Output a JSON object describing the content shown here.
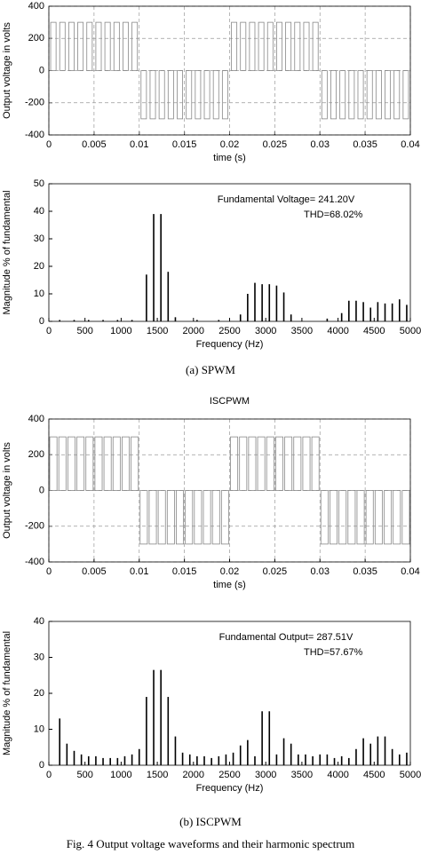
{
  "chart_data": [
    {
      "type": "pulse",
      "xlabel": "time (s)",
      "ylabel": "Output voltage in volts",
      "xlim": [
        0,
        0.04
      ],
      "xticks": [
        0,
        0.005,
        0.01,
        0.015,
        0.02,
        0.025,
        0.03,
        0.035,
        0.04
      ],
      "ylim": [
        -400,
        400
      ],
      "yticks": [
        -400,
        -200,
        0,
        200,
        400
      ],
      "grid": true,
      "color": "#888888",
      "x_start": [
        0.0002,
        0.0012,
        0.0022,
        0.0032,
        0.0042,
        0.0052,
        0.0062,
        0.0072,
        0.0082,
        0.0092,
        0.0102,
        0.0112,
        0.0122,
        0.0132,
        0.0142,
        0.0152,
        0.0162,
        0.0172,
        0.0182,
        0.0192,
        0.0202,
        0.0212,
        0.0222,
        0.0232,
        0.0242,
        0.0252,
        0.0262,
        0.0272,
        0.0282,
        0.0292,
        0.0302,
        0.0312,
        0.0322,
        0.0332,
        0.0342,
        0.0352,
        0.0362,
        0.0372,
        0.0382,
        0.0392
      ],
      "x_end": [
        0.0008,
        0.0018,
        0.0028,
        0.0038,
        0.0048,
        0.0058,
        0.0068,
        0.0078,
        0.0088,
        0.0098,
        0.0108,
        0.0118,
        0.0128,
        0.0138,
        0.0148,
        0.0158,
        0.0168,
        0.0178,
        0.0188,
        0.0198,
        0.0208,
        0.0218,
        0.0228,
        0.0238,
        0.0248,
        0.0258,
        0.0268,
        0.0278,
        0.0288,
        0.0298,
        0.0308,
        0.0318,
        0.0328,
        0.0338,
        0.0348,
        0.0358,
        0.0368,
        0.0378,
        0.0388,
        0.0398
      ],
      "values": [
        300,
        300,
        300,
        300,
        300,
        300,
        300,
        300,
        300,
        300,
        -300,
        -300,
        -300,
        -300,
        -300,
        -300,
        -300,
        -300,
        -300,
        -300,
        300,
        300,
        300,
        300,
        300,
        300,
        300,
        300,
        300,
        300,
        -300,
        -300,
        -300,
        -300,
        -300,
        -300,
        -300,
        -300,
        -300,
        -300
      ]
    },
    {
      "type": "bar",
      "xlabel": "Frequency (Hz)",
      "ylabel": "Magnitude % of fundamental",
      "annotations": [
        "Fundamental Voltage= 241.20V",
        "THD=68.02%"
      ],
      "xlim": [
        0,
        5000
      ],
      "xticks": [
        0,
        500,
        1000,
        1500,
        2000,
        2500,
        3000,
        3500,
        4000,
        4500,
        5000
      ],
      "ylim": [
        0,
        50
      ],
      "yticks": [
        0,
        10,
        20,
        30,
        40,
        50
      ],
      "grid": false,
      "color": "#000000",
      "x": [
        150,
        350,
        550,
        750,
        950,
        1150,
        1350,
        1450,
        1550,
        1650,
        1750,
        2050,
        2350,
        2650,
        2750,
        2850,
        2950,
        3050,
        3150,
        3250,
        3350,
        3850,
        4050,
        4150,
        4250,
        4350,
        4450,
        4550,
        4650,
        4750,
        4850,
        4950
      ],
      "values": [
        0.5,
        0.5,
        0.5,
        0.5,
        0.5,
        0.5,
        17,
        39,
        39,
        18,
        1.5,
        0.5,
        0.5,
        2.5,
        10,
        14,
        13.5,
        13.5,
        13,
        10.5,
        2.5,
        1,
        3,
        7.5,
        7.5,
        7,
        5,
        7,
        6.5,
        6.5,
        8,
        6
      ]
    },
    {
      "type": "pulse",
      "title": "ISCPWM",
      "xlabel": "time (s)",
      "ylabel": "Output voltage in volts",
      "xlim": [
        0,
        0.04
      ],
      "xticks": [
        0,
        0.005,
        0.01,
        0.015,
        0.02,
        0.025,
        0.03,
        0.035,
        0.04
      ],
      "ylim": [
        -400,
        400
      ],
      "yticks": [
        -400,
        -200,
        0,
        200,
        400
      ],
      "grid": true,
      "color": "#888888",
      "x_start": [
        0.0001,
        0.0011,
        0.0021,
        0.0031,
        0.0041,
        0.0051,
        0.0061,
        0.0071,
        0.0081,
        0.0091,
        0.0101,
        0.0111,
        0.0121,
        0.0131,
        0.0141,
        0.0151,
        0.0161,
        0.0171,
        0.0181,
        0.0191,
        0.0201,
        0.0211,
        0.0221,
        0.0231,
        0.0241,
        0.0251,
        0.0261,
        0.0271,
        0.0281,
        0.0291,
        0.0301,
        0.0311,
        0.0321,
        0.0331,
        0.0341,
        0.0351,
        0.0361,
        0.0371,
        0.0381,
        0.0391
      ],
      "x_end": [
        0.0009,
        0.0019,
        0.0029,
        0.0039,
        0.0049,
        0.0059,
        0.0069,
        0.0079,
        0.0089,
        0.0099,
        0.0109,
        0.0119,
        0.0129,
        0.0139,
        0.0149,
        0.0159,
        0.0169,
        0.0179,
        0.0189,
        0.0199,
        0.0209,
        0.0219,
        0.0229,
        0.0239,
        0.0249,
        0.0259,
        0.0269,
        0.0279,
        0.0289,
        0.0299,
        0.0309,
        0.0319,
        0.0329,
        0.0339,
        0.0349,
        0.0359,
        0.0369,
        0.0379,
        0.0389,
        0.0399
      ],
      "values": [
        300,
        300,
        300,
        300,
        300,
        300,
        300,
        300,
        300,
        300,
        -300,
        -300,
        -300,
        -300,
        -300,
        -300,
        -300,
        -300,
        -300,
        -300,
        300,
        300,
        300,
        300,
        300,
        300,
        300,
        300,
        300,
        300,
        -300,
        -300,
        -300,
        -300,
        -300,
        -300,
        -300,
        -300,
        -300,
        -300
      ]
    },
    {
      "type": "bar",
      "xlabel": "Frequency (Hz)",
      "ylabel": "Magnitude % of fundamental",
      "annotations": [
        "Fundamental Output= 287.51V",
        "THD=57.67%"
      ],
      "xlim": [
        0,
        5000
      ],
      "xticks": [
        0,
        500,
        1000,
        1500,
        2000,
        2500,
        3000,
        3500,
        4000,
        4500,
        5000
      ],
      "ylim": [
        0,
        40
      ],
      "yticks": [
        0,
        10,
        20,
        30,
        40
      ],
      "grid": false,
      "color": "#000000",
      "x": [
        150,
        250,
        350,
        450,
        550,
        650,
        750,
        850,
        950,
        1050,
        1150,
        1250,
        1350,
        1450,
        1550,
        1650,
        1750,
        1850,
        1950,
        2050,
        2150,
        2250,
        2350,
        2450,
        2550,
        2650,
        2750,
        2850,
        2950,
        3050,
        3150,
        3250,
        3350,
        3450,
        3550,
        3650,
        3750,
        3850,
        3950,
        4050,
        4150,
        4250,
        4350,
        4450,
        4550,
        4650,
        4750,
        4850,
        4950
      ],
      "values": [
        13,
        6,
        4,
        3,
        2.5,
        2.5,
        2,
        2,
        2,
        2.5,
        3,
        4.5,
        19,
        26.5,
        26.5,
        19,
        8,
        3.5,
        3,
        2.5,
        2.5,
        2,
        2.5,
        3,
        3.5,
        5.5,
        7,
        2.5,
        15,
        15,
        3,
        7.5,
        6,
        3,
        3,
        2.5,
        3,
        3,
        2,
        2.5,
        2,
        4.5,
        7.5,
        6,
        8,
        8,
        4.5,
        3,
        3.5
      ]
    }
  ],
  "captions": [
    "(a) SPWM",
    "(b) ISCPWM",
    "Fig. 4 Output voltage waveforms and their harmonic spectrum"
  ]
}
